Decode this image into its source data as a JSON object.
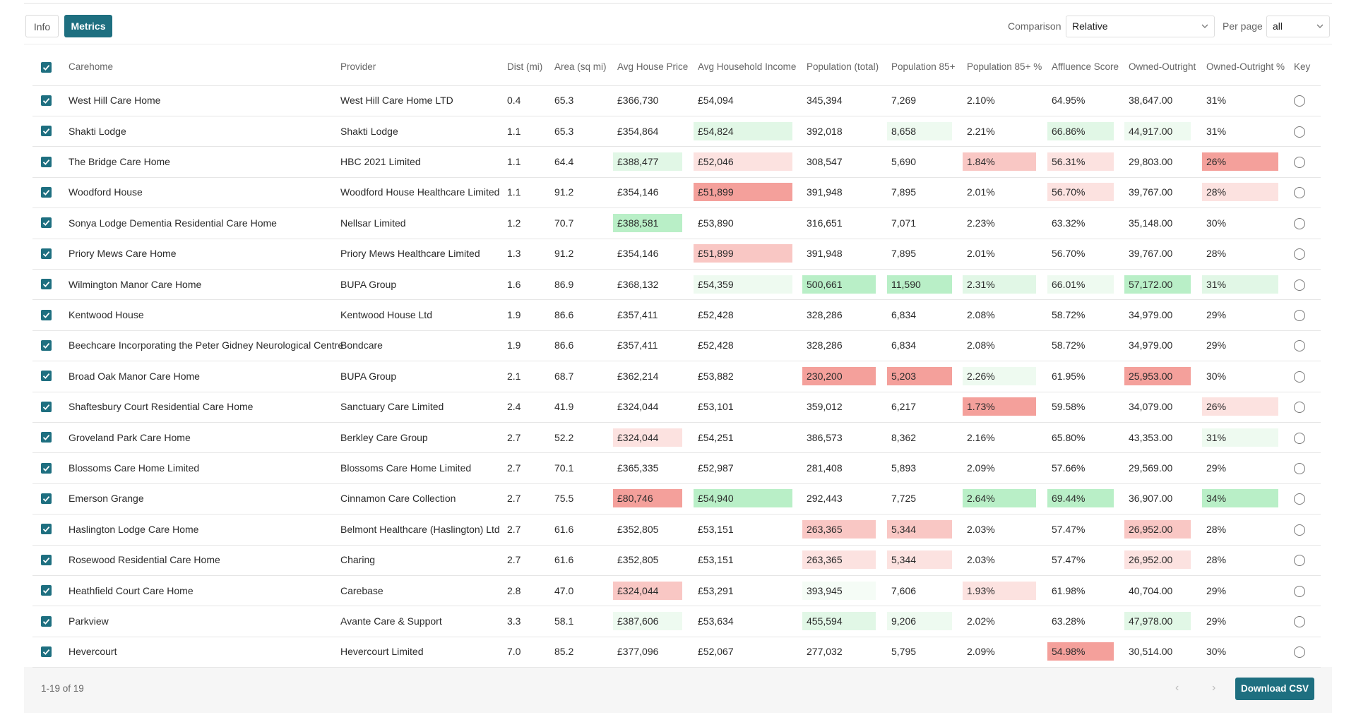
{
  "tabs": [
    "Info",
    "Metrics"
  ],
  "controls": {
    "comparison_label": "Comparison",
    "comparison_value": "Relative",
    "per_page_label": "Per page",
    "per_page_value": "all"
  },
  "table": {
    "columns": [
      "Carehome",
      "Provider",
      "Dist (mi)",
      "Area (sq mi)",
      "Avg House Price",
      "Avg Household Income",
      "Population (total)",
      "Population 85+",
      "Population 85+ %",
      "Affluence Score",
      "Owned-Outright",
      "Owned-Outright %",
      "Key"
    ],
    "rows": [
      [
        "West Hill Care Home",
        "West Hill Care Home LTD",
        "0.4",
        "65.3",
        "£366,730",
        "£54,094",
        "345,394",
        "7,269",
        "2.10%",
        "64.95%",
        "38,647.00",
        "31%"
      ],
      [
        "Shakti Lodge",
        "Shakti Lodge",
        "1.1",
        "65.3",
        "£354,864",
        {
          "text": "£54,824",
          "color": "#e1f7e6"
        },
        "392,018",
        {
          "text": "8,658",
          "color": "#eefaf0"
        },
        "2.21%",
        {
          "text": "66.86%",
          "color": "#e1f7e6"
        },
        {
          "text": "44,917.00",
          "color": "#eefaf0"
        },
        "31%"
      ],
      [
        "The Bridge Care Home",
        "HBC 2021 Limited",
        "1.1",
        "64.4",
        {
          "text": "£388,477",
          "color": "#e1f7e6"
        },
        {
          "text": "£52,046",
          "color": "#fce2e0"
        },
        "308,547",
        "5,690",
        {
          "text": "1.84%",
          "color": "#f9c7c4"
        },
        {
          "text": "56.31%",
          "color": "#fce2e0"
        },
        "29,803.00",
        {
          "text": "26%",
          "color": "#f4a09b"
        }
      ],
      [
        "Woodford House",
        "Woodford House Healthcare Limited",
        "1.1",
        "91.2",
        "£354,146",
        {
          "text": "£51,899",
          "color": "#f4a09b"
        },
        "391,948",
        "7,895",
        "2.01%",
        {
          "text": "56.70%",
          "color": "#fce2e0"
        },
        "39,767.00",
        {
          "text": "28%",
          "color": "#fce2e0"
        }
      ],
      [
        "Sonya Lodge Dementia Residential Care Home",
        "Nellsar Limited",
        "1.2",
        "70.7",
        {
          "text": "£388,581",
          "color": "#b9efc7"
        },
        "£53,890",
        "316,651",
        "7,071",
        "2.23%",
        "63.32%",
        "35,148.00",
        "30%"
      ],
      [
        "Priory Mews Care Home",
        "Priory Mews Healthcare Limited",
        "1.3",
        "91.2",
        "£354,146",
        {
          "text": "£51,899",
          "color": "#f9c7c4"
        },
        "391,948",
        "7,895",
        "2.01%",
        "56.70%",
        "39,767.00",
        "28%"
      ],
      [
        "Wilmington Manor Care Home",
        "BUPA Group",
        "1.6",
        "86.9",
        "£368,132",
        {
          "text": "£54,359",
          "color": "#eefaf0"
        },
        {
          "text": "500,661",
          "color": "#b9efc7"
        },
        {
          "text": "11,590",
          "color": "#b9efc7"
        },
        {
          "text": "2.31%",
          "color": "#e1f7e6"
        },
        {
          "text": "66.01%",
          "color": "#eefaf0"
        },
        {
          "text": "57,172.00",
          "color": "#b9efc7"
        },
        {
          "text": "31%",
          "color": "#e1f7e6"
        }
      ],
      [
        "Kentwood House",
        "Kentwood House Ltd",
        "1.9",
        "86.6",
        "£357,411",
        "£52,428",
        "328,286",
        "6,834",
        "2.08%",
        "58.72%",
        "34,979.00",
        "29%"
      ],
      [
        "Beechcare Incorporating the Peter Gidney Neurological Centre",
        "Bondcare",
        "1.9",
        "86.6",
        "£357,411",
        "£52,428",
        "328,286",
        "6,834",
        "2.08%",
        "58.72%",
        "34,979.00",
        "29%"
      ],
      [
        "Broad Oak Manor Care Home",
        "BUPA Group",
        "2.1",
        "68.7",
        "£362,214",
        "£53,882",
        {
          "text": "230,200",
          "color": "#f4a09b"
        },
        {
          "text": "5,203",
          "color": "#f4a09b"
        },
        {
          "text": "2.26%",
          "color": "#eefaf0"
        },
        "61.95%",
        {
          "text": "25,953.00",
          "color": "#f4a09b"
        },
        "30%"
      ],
      [
        "Shaftesbury Court Residential Care Home",
        "Sanctuary Care Limited",
        "2.4",
        "41.9",
        "£324,044",
        "£53,101",
        "359,012",
        "6,217",
        {
          "text": "1.73%",
          "color": "#f4a09b"
        },
        "59.58%",
        "34,079.00",
        {
          "text": "26%",
          "color": "#fce2e0"
        }
      ],
      [
        "Groveland Park Care Home",
        "Berkley Care Group",
        "2.7",
        "52.2",
        {
          "text": "£324,044",
          "color": "#fce2e0"
        },
        "£54,251",
        "386,573",
        "8,362",
        "2.16%",
        "65.80%",
        "43,353.00",
        {
          "text": "31%",
          "color": "#eefaf0"
        }
      ],
      [
        "Blossoms Care Home Limited",
        "Blossoms Care Home Limited",
        "2.7",
        "70.1",
        "£365,335",
        "£52,987",
        "281,408",
        "5,893",
        "2.09%",
        "57.66%",
        "29,569.00",
        "29%"
      ],
      [
        "Emerson Grange",
        "Cinnamon Care Collection",
        "2.7",
        "75.5",
        {
          "text": "£80,746",
          "color": "#f4a09b"
        },
        {
          "text": "£54,940",
          "color": "#b9efc7"
        },
        "292,443",
        "7,725",
        {
          "text": "2.64%",
          "color": "#b9efc7"
        },
        {
          "text": "69.44%",
          "color": "#b9efc7"
        },
        "36,907.00",
        {
          "text": "34%",
          "color": "#b9efc7"
        }
      ],
      [
        "Haslington Lodge Care Home",
        "Belmont Healthcare (Haslington) Ltd",
        "2.7",
        "61.6",
        "£352,805",
        "£53,151",
        {
          "text": "263,365",
          "color": "#f9c7c4"
        },
        {
          "text": "5,344",
          "color": "#f9c7c4"
        },
        "2.03%",
        "57.47%",
        {
          "text": "26,952.00",
          "color": "#f9c7c4"
        },
        "28%"
      ],
      [
        "Rosewood Residential Care Home",
        "Charing",
        "2.7",
        "61.6",
        "£352,805",
        "£53,151",
        {
          "text": "263,365",
          "color": "#fce2e0"
        },
        {
          "text": "5,344",
          "color": "#fce2e0"
        },
        "2.03%",
        "57.47%",
        {
          "text": "26,952.00",
          "color": "#fce2e0"
        },
        "28%"
      ],
      [
        "Heathfield Court Care Home",
        "Carebase",
        "2.8",
        "47.0",
        {
          "text": "£324,044",
          "color": "#f9c7c4"
        },
        "£53,291",
        {
          "text": "393,945",
          "color": "#f5fcf6"
        },
        "7,606",
        {
          "text": "1.93%",
          "color": "#fce2e0"
        },
        "61.98%",
        "40,704.00",
        "29%"
      ],
      [
        "Parkview",
        "Avante Care & Support",
        "3.3",
        "58.1",
        {
          "text": "£387,606",
          "color": "#eefaf0"
        },
        "£53,634",
        {
          "text": "455,594",
          "color": "#e1f7e6"
        },
        {
          "text": "9,206",
          "color": "#eefaf0"
        },
        "2.02%",
        "63.28%",
        {
          "text": "47,978.00",
          "color": "#e1f7e6"
        },
        "29%"
      ],
      [
        "Hevercourt",
        "Hevercourt Limited",
        "7.0",
        "85.2",
        "£377,096",
        "£52,067",
        "277,032",
        "5,795",
        "2.09%",
        {
          "text": "54.98%",
          "color": "#f4a09b"
        },
        "30,514.00",
        "30%"
      ]
    ]
  },
  "footer": {
    "range": "1-19 of 19",
    "download": "Download CSV"
  }
}
